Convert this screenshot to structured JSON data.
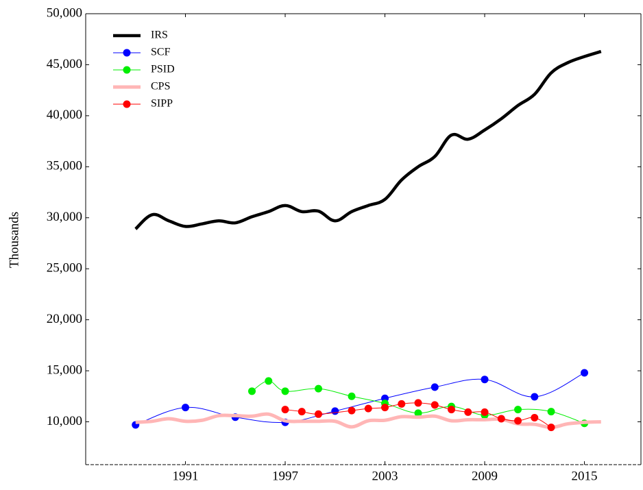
{
  "chart_data": {
    "type": "line",
    "y_label": "Thousands",
    "xlim": [
      1985,
      2018.4
    ],
    "xticks": [
      1991,
      1997,
      2003,
      2009,
      2015
    ],
    "ylim": [
      5800,
      50000
    ],
    "yticks": [
      {
        "value": 10000,
        "label": "10,000"
      },
      {
        "value": 15000,
        "label": "15,000"
      },
      {
        "value": 20000,
        "label": "20,000"
      },
      {
        "value": 25000,
        "label": "25,000"
      },
      {
        "value": 30000,
        "label": "30,000"
      },
      {
        "value": 35000,
        "label": "35,000"
      },
      {
        "value": 40000,
        "label": "40,000"
      },
      {
        "value": 45000,
        "label": "45,000"
      },
      {
        "value": 50000,
        "label": "50,000"
      }
    ],
    "legend": "upper left",
    "series": [
      {
        "name": "IRS",
        "color": "#000000",
        "width": 4.5,
        "marker": false,
        "x": [
          1988,
          1989,
          1990,
          1991,
          1992,
          1993,
          1994,
          1995,
          1996,
          1997,
          1998,
          1999,
          2000,
          2001,
          2002,
          2003,
          2004,
          2005,
          2006,
          2007,
          2008,
          2009,
          2010,
          2011,
          2012,
          2013,
          2014,
          2015,
          2016
        ],
        "values": [
          28900,
          30300,
          29700,
          29150,
          29400,
          29700,
          29500,
          30100,
          30600,
          31200,
          30600,
          30650,
          29700,
          30600,
          31200,
          31800,
          33700,
          35000,
          36000,
          38100,
          37700,
          38600,
          39700,
          41000,
          42100,
          44200,
          45200,
          45800,
          46300
        ]
      },
      {
        "name": "SCF",
        "color": "#0000ff",
        "width": 1,
        "marker": true,
        "x": [
          1988,
          1991,
          1994,
          1997,
          2000,
          2003,
          2006,
          2009,
          2012,
          2015
        ],
        "values": [
          9700,
          11400,
          10450,
          9950,
          11050,
          12300,
          13400,
          14150,
          12450,
          14800
        ]
      },
      {
        "name": "PSID",
        "color": "#00ee00",
        "width": 1,
        "marker": true,
        "x": [
          1995,
          1996,
          1997,
          1999,
          2001,
          2003,
          2005,
          2007,
          2009,
          2011,
          2013,
          2015
        ],
        "values": [
          13000,
          14000,
          13000,
          13250,
          12500,
          11800,
          10850,
          11500,
          10650,
          11200,
          11000,
          9850
        ]
      },
      {
        "name": "CPS",
        "color": "#ffb6b6",
        "width": 5,
        "marker": false,
        "x": [
          1988,
          1989,
          1990,
          1991,
          1992,
          1993,
          1994,
          1995,
          1996,
          1997,
          1998,
          1999,
          2000,
          2001,
          2002,
          2003,
          2004,
          2005,
          2006,
          2007,
          2008,
          2009,
          2010,
          2011,
          2012,
          2013,
          2014,
          2015,
          2016
        ],
        "values": [
          9950,
          10050,
          10300,
          10050,
          10150,
          10600,
          10600,
          10550,
          10750,
          10100,
          10050,
          10050,
          10050,
          9500,
          10100,
          10150,
          10500,
          10450,
          10550,
          10100,
          10200,
          10200,
          10250,
          9800,
          9750,
          9450,
          9800,
          9950,
          10000
        ]
      },
      {
        "name": "SIPP",
        "color": "#ff0000",
        "width": 1,
        "marker": true,
        "x": [
          1997,
          1998,
          1999,
          2001,
          2002,
          2003,
          2004,
          2005,
          2006,
          2007,
          2008,
          2009,
          2010,
          2011,
          2012,
          2013
        ],
        "values": [
          11200,
          11000,
          10750,
          11100,
          11300,
          11400,
          11750,
          11850,
          11650,
          11200,
          10950,
          10950,
          10300,
          10100,
          10400,
          9450
        ]
      }
    ]
  }
}
